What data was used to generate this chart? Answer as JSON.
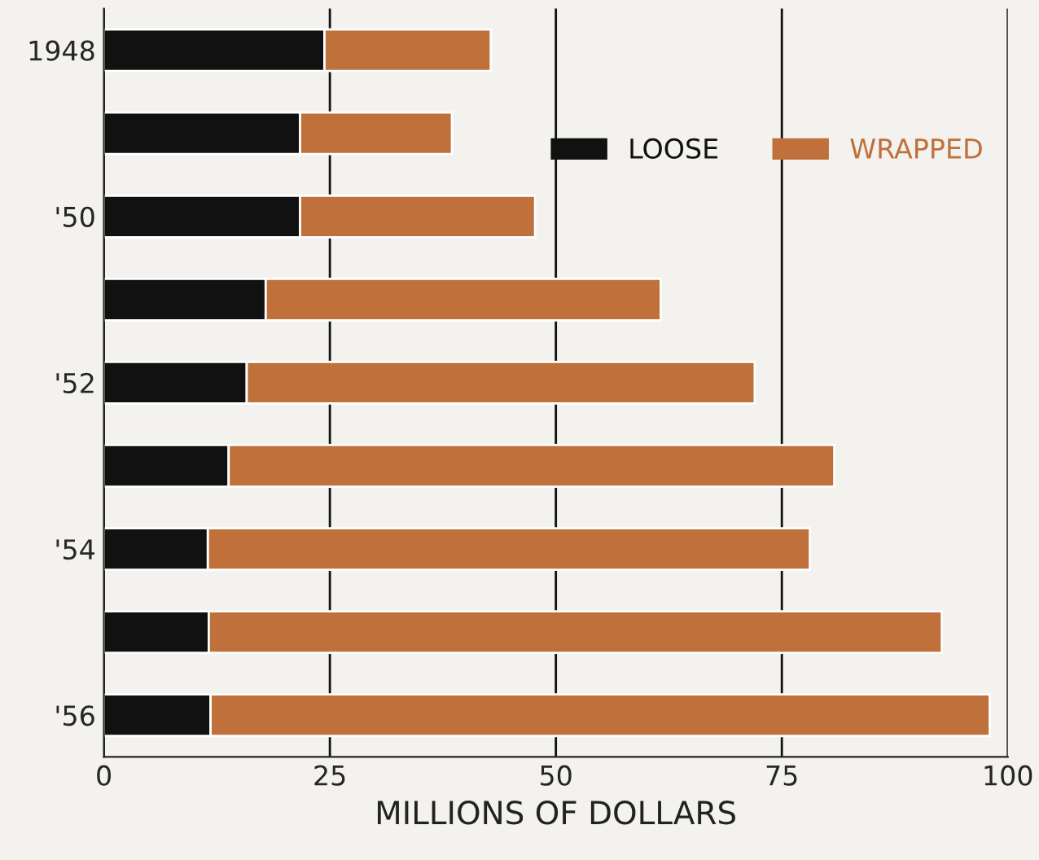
{
  "chart_data": {
    "type": "bar",
    "orientation": "horizontal",
    "stacked": true,
    "categories": [
      "1948",
      null,
      "'50",
      null,
      "'52",
      null,
      "'54",
      null,
      "'56"
    ],
    "series": [
      {
        "name": "LOOSE",
        "color": "#111111",
        "values": [
          24.4,
          21.7,
          21.7,
          17.9,
          15.8,
          13.8,
          11.5,
          11.6,
          11.8
        ]
      },
      {
        "name": "WRAPPED",
        "color": "#c0703a",
        "values": [
          18.4,
          16.8,
          26.0,
          43.7,
          56.2,
          67.0,
          66.6,
          81.1,
          86.2
        ]
      }
    ],
    "xlabel": "MILLIONS OF DOLLARS",
    "xlim": [
      0,
      100
    ],
    "xticks": [
      0,
      25,
      50,
      75,
      100
    ],
    "grid": "x",
    "legend": "top right"
  }
}
